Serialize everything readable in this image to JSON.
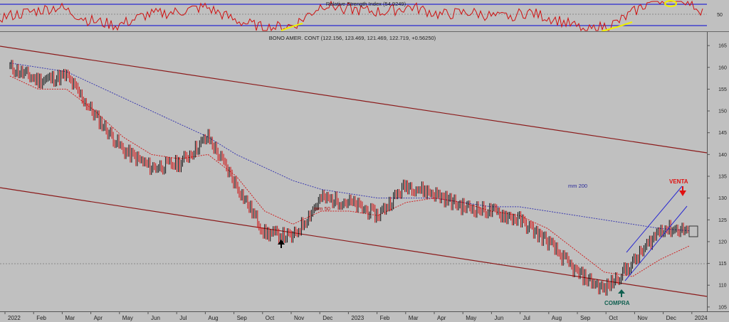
{
  "rsi_panel": {
    "title": "Relative Strength Index (54.9249)",
    "ticks": [
      "50"
    ],
    "band_colors": {
      "band": "#2a2ad0",
      "line": "#d01010",
      "highlight": "#f0f000"
    }
  },
  "price_panel": {
    "title": "BONO AMER. CONT (122.156, 123.469, 121.469, 122.719, +0.56250)",
    "y_ticks": [
      "165",
      "160",
      "155",
      "150",
      "145",
      "140",
      "135",
      "130",
      "125",
      "120",
      "115",
      "110",
      "105"
    ],
    "x_ticks": [
      "2022",
      "Feb",
      "Mar",
      "Apr",
      "May",
      "Jun",
      "Jul",
      "Aug",
      "Sep",
      "Oct",
      "Nov",
      "Dec",
      "2023",
      "Feb",
      "Mar",
      "Apr",
      "May",
      "Jun",
      "Jul",
      "Aug",
      "Sep",
      "Oct",
      "Nov",
      "Dec",
      "2024"
    ],
    "annotations": {
      "mm50": "mm 50",
      "mm200": "mm 200",
      "venta": "VENTA",
      "compra": "COMPRA"
    },
    "colors": {
      "background": "#c0c0c0",
      "channel": "#8b1a1a",
      "mm50": "#d02020",
      "mm200": "#3a3ab0",
      "venta": "#e01010",
      "compra": "#106050",
      "trendchannel": "#2a2ad0"
    }
  },
  "chart_data": {
    "type": "line",
    "title": "BONO AMER. CONT (122.156, 123.469, 121.469, 122.719, +0.56250)",
    "xlabel": "",
    "ylabel": "",
    "ylim": [
      104,
      166
    ],
    "x": [
      "2022-01",
      "2022-02",
      "2022-03",
      "2022-04",
      "2022-05",
      "2022-06",
      "2022-07",
      "2022-08",
      "2022-09",
      "2022-10",
      "2022-11",
      "2022-12",
      "2023-01",
      "2023-02",
      "2023-03",
      "2023-04",
      "2023-05",
      "2023-06",
      "2023-07",
      "2023-08",
      "2023-09",
      "2023-10",
      "2023-11",
      "2023-12",
      "2024-01"
    ],
    "series": [
      {
        "name": "",
        "values": [
          160,
          157,
          158,
          149,
          141,
          137,
          138,
          144,
          133,
          122,
          121,
          130,
          129,
          126,
          133,
          131,
          128,
          127,
          125,
          120,
          113,
          109,
          115,
          123,
          122.7
        ]
      },
      {
        "name": "mm 50",
        "values": [
          158,
          155,
          155,
          150,
          144,
          140,
          139,
          140,
          135,
          127,
          124,
          127,
          127,
          126,
          129,
          130,
          129,
          127,
          126,
          123,
          118,
          113,
          112,
          116,
          119
        ]
      },
      {
        "name": "mm 200",
        "values": [
          161,
          160,
          159,
          156,
          153,
          150,
          147,
          144,
          140,
          137,
          134,
          132,
          131,
          130,
          130,
          130,
          129,
          128,
          128,
          127,
          126,
          125,
          124,
          123,
          122.5
        ]
      }
    ],
    "rsi": {
      "last": 54.9249,
      "level": 50
    },
    "annotations": [
      "mm 50",
      "mm 200",
      "VENTA",
      "COMPRA"
    ]
  }
}
